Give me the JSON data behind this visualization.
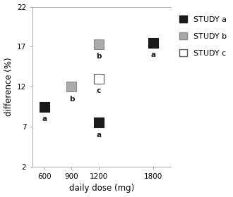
{
  "study_a": {
    "x": [
      600,
      1200,
      1800
    ],
    "y": [
      9.5,
      7.5,
      17.5
    ],
    "labels": [
      "a",
      "a",
      "a"
    ],
    "facecolor": "#1a1a1a",
    "edge_color": "#1a1a1a",
    "label": "STUDY a"
  },
  "study_b": {
    "x": [
      900,
      1200
    ],
    "y": [
      12.0,
      17.3
    ],
    "labels": [
      "b",
      "b"
    ],
    "facecolor": "#aaaaaa",
    "edge_color": "#888888",
    "label": "STUDY b"
  },
  "study_c": {
    "x": [
      1200
    ],
    "y": [
      13.0
    ],
    "labels": [
      "c"
    ],
    "facecolor": "#ffffff",
    "edge_color": "#555555",
    "label": "STUDY c"
  },
  "xlabel": "daily dose (mg)",
  "ylabel": "difference (%)",
  "xlim": [
    470,
    2000
  ],
  "ylim": [
    2,
    22
  ],
  "xticks": [
    600,
    900,
    1200,
    1800
  ],
  "yticks": [
    2,
    7,
    12,
    17,
    22
  ],
  "marker_size": 100,
  "label_fontsize": 7.5,
  "axis_label_fontsize": 8.5,
  "legend_fontsize": 8,
  "bg_color": "#ffffff",
  "spine_color": "#aaaaaa"
}
